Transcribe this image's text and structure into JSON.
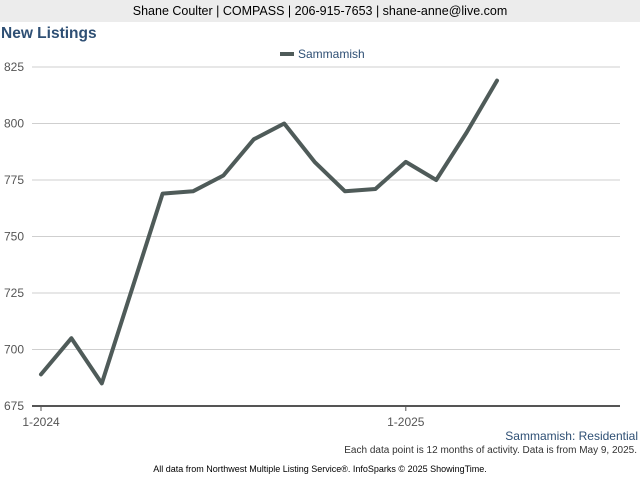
{
  "header": {
    "contact": "Shane Coulter | COMPASS | 206-915-7653 | shane-anne@live.com"
  },
  "chart_data": {
    "type": "line",
    "title": "New Listings",
    "xlabel": "",
    "ylabel": "",
    "x": [
      "1-2024",
      "2-2024",
      "3-2024",
      "4-2024",
      "5-2024",
      "6-2024",
      "7-2024",
      "8-2024",
      "9-2024",
      "10-2024",
      "11-2024",
      "12-2024",
      "1-2025",
      "2-2025",
      "3-2025",
      "4-2025"
    ],
    "x_tick_labels": [
      "1-2024",
      "1-2025"
    ],
    "series": [
      {
        "name": "Sammamish",
        "color": "#4f5b59",
        "values": [
          689,
          705,
          685,
          727,
          769,
          770,
          777,
          793,
          800,
          783,
          770,
          771,
          783,
          775,
          796,
          819
        ]
      }
    ],
    "ylim": [
      675,
      825
    ],
    "yticks": [
      675,
      700,
      725,
      750,
      775,
      800,
      825
    ],
    "grid": true,
    "legend": "top-center"
  },
  "caption": "Sammamish: Residential",
  "note": "Each data point is 12 months of activity. Data is from May 9, 2025.",
  "footer": "All data from Northwest Multiple Listing Service®. InfoSparks © 2025 ShowingTime."
}
